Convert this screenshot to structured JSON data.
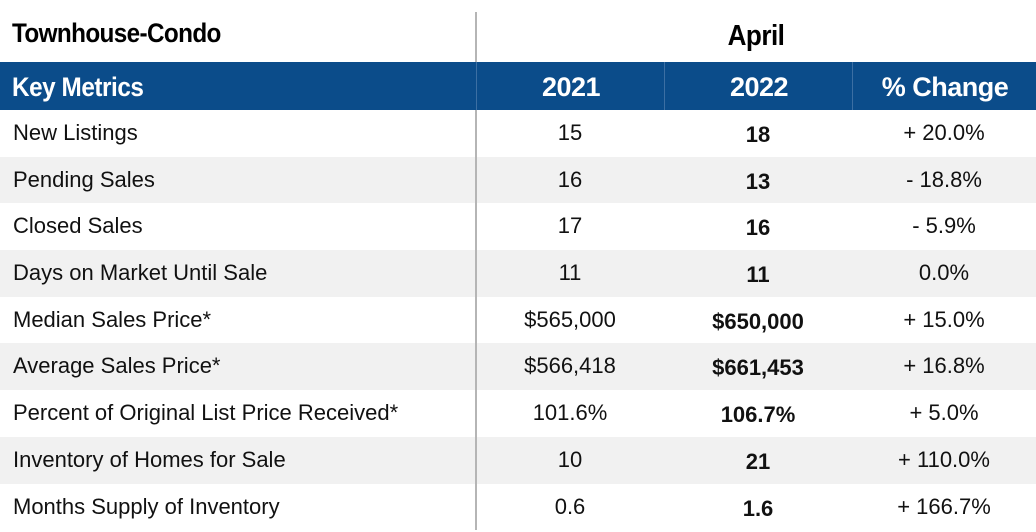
{
  "table": {
    "title": "Townhouse-Condo",
    "month": "April",
    "headers": {
      "metric": "Key Metrics",
      "year1": "2021",
      "year2": "2022",
      "change": "% Change"
    },
    "header_color": "#0b4c8a",
    "rows": [
      {
        "label": "New Listings",
        "v2021": "15",
        "v2022": "18",
        "change": "+ 20.0%"
      },
      {
        "label": "Pending Sales",
        "v2021": "16",
        "v2022": "13",
        "change": "- 18.8%"
      },
      {
        "label": "Closed Sales",
        "v2021": "17",
        "v2022": "16",
        "change": "- 5.9%"
      },
      {
        "label": "Days on Market Until Sale",
        "v2021": "11",
        "v2022": "11",
        "change": "0.0%"
      },
      {
        "label": "Median Sales Price*",
        "v2021": "$565,000",
        "v2022": "$650,000",
        "change": "+ 15.0%"
      },
      {
        "label": "Average Sales Price*",
        "v2021": "$566,418",
        "v2022": "$661,453",
        "change": "+ 16.8%"
      },
      {
        "label": "Percent of Original List Price Received*",
        "v2021": "101.6%",
        "v2022": "106.7%",
        "change": "+ 5.0%"
      },
      {
        "label": "Inventory of Homes for Sale",
        "v2021": "10",
        "v2022": "21",
        "change": "+ 110.0%"
      },
      {
        "label": "Months Supply of Inventory",
        "v2021": "0.6",
        "v2022": "1.6",
        "change": "+ 166.7%"
      }
    ]
  }
}
